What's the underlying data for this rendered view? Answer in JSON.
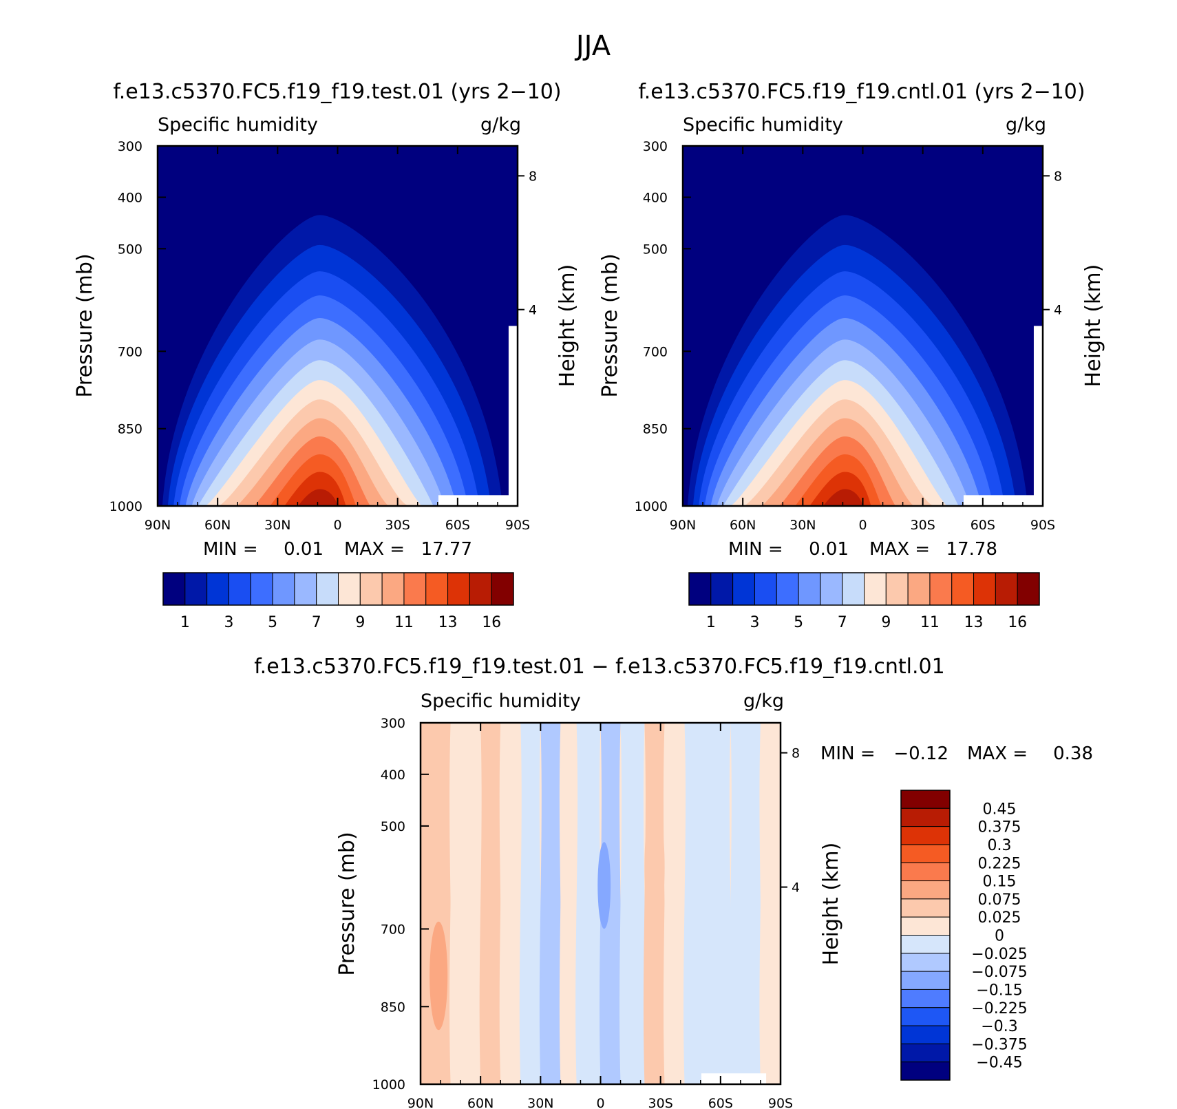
{
  "chart_data": [
    {
      "type": "heatmap",
      "title": "f.e13.c5370.FC5.f19_f19.test.01 (yrs 2−10)",
      "subtitle_left": "Specific humidity",
      "units": "g/kg",
      "xlabel": "",
      "ylabel": "Pressure (mb)",
      "ylabel_right": "Height (km)",
      "xticks": [
        "90N",
        "60N",
        "30N",
        "0",
        "30S",
        "60S",
        "90S"
      ],
      "yticks": [
        "300",
        "400",
        "500",
        "700",
        "850",
        "1000"
      ],
      "yticks_right": [
        "8",
        "4"
      ],
      "ylim": [
        1000,
        300
      ],
      "min_label": "MIN =",
      "max_label": "MAX =",
      "min": "0.01",
      "max": "17.77",
      "colorbar_labels": [
        "1",
        "3",
        "5",
        "7",
        "9",
        "11",
        "13",
        "16"
      ],
      "colors": [
        "#00007f",
        "#0018a8",
        "#0035d6",
        "#1a4ef2",
        "#3d6eff",
        "#6f97ff",
        "#9ab8ff",
        "#c7dcfa",
        "#fde6d6",
        "#fcc9ad",
        "#fba882",
        "#fa7a4d",
        "#f55b23",
        "#dd3306",
        "#b81c04",
        "#820000"
      ],
      "levels_contour": [
        {
          "peak": 0.76,
          "y500": 0.16
        },
        {
          "peak": 0.64,
          "y500": 0.1
        },
        {
          "peak": 0.56,
          "y500": 0.08
        },
        {
          "peak": 0.46,
          "y500": 0.02
        },
        {
          "peak": 0.37,
          "y500": -0.03
        },
        {
          "peak": 0.28,
          "y500": -0.08
        },
        {
          "peak": 0.23,
          "y500": -0.12
        },
        {
          "peak": 0.18,
          "y500": -0.15
        },
        {
          "peak": 0.15,
          "y500": -0.18
        },
        {
          "peak": 0.12,
          "y500": -0.21
        },
        {
          "peak": 0.09,
          "y500": -0.23
        },
        {
          "peak": 0.07,
          "y500": -0.25
        },
        {
          "peak": 0.05,
          "y500": -0.27
        },
        {
          "peak": 0.03,
          "y500": -0.28
        }
      ]
    },
    {
      "type": "heatmap",
      "title": "f.e13.c5370.FC5.f19_f19.cntl.01 (yrs 2−10)",
      "subtitle_left": "Specific humidity",
      "units": "g/kg",
      "xlabel": "",
      "ylabel": "Pressure (mb)",
      "ylabel_right": "Height (km)",
      "xticks": [
        "90N",
        "60N",
        "30N",
        "0",
        "30S",
        "60S",
        "90S"
      ],
      "yticks": [
        "300",
        "400",
        "500",
        "700",
        "850",
        "1000"
      ],
      "yticks_right": [
        "8",
        "4"
      ],
      "ylim": [
        1000,
        300
      ],
      "min_label": "MIN =",
      "max_label": "MAX =",
      "min": "0.01",
      "max": "17.78",
      "colorbar_labels": [
        "1",
        "3",
        "5",
        "7",
        "9",
        "11",
        "13",
        "16"
      ],
      "colors": [
        "#00007f",
        "#0018a8",
        "#0035d6",
        "#1a4ef2",
        "#3d6eff",
        "#6f97ff",
        "#9ab8ff",
        "#c7dcfa",
        "#fde6d6",
        "#fcc9ad",
        "#fba882",
        "#fa7a4d",
        "#f55b23",
        "#dd3306",
        "#b81c04",
        "#820000"
      ]
    },
    {
      "type": "heatmap",
      "title": "f.e13.c5370.FC5.f19_f19.test.01 − f.e13.c5370.FC5.f19_f19.cntl.01",
      "subtitle_left": "Specific humidity",
      "units": "g/kg",
      "xlabel": "",
      "ylabel": "Pressure (mb)",
      "ylabel_right": "Height (km)",
      "xticks": [
        "90N",
        "60N",
        "30N",
        "0",
        "30S",
        "60S",
        "90S"
      ],
      "yticks": [
        "300",
        "400",
        "500",
        "700",
        "850",
        "1000"
      ],
      "yticks_right": [
        "8",
        "4"
      ],
      "ylim": [
        1000,
        300
      ],
      "min_label": "MIN =",
      "max_label": "MAX =",
      "min": "−0.12",
      "max": "0.38",
      "colorbar_labels": [
        "0.45",
        "0.375",
        "0.3",
        "0.225",
        "0.15",
        "0.075",
        "0.025",
        "0",
        "−0.025",
        "−0.075",
        "−0.15",
        "−0.225",
        "−0.3",
        "−0.375",
        "−0.45"
      ],
      "colors": [
        "#820000",
        "#b81c04",
        "#dd3306",
        "#f55b23",
        "#fa7a4d",
        "#fba882",
        "#fcc9ad",
        "#fde6d6",
        "#d6e6fb",
        "#b0c9ff",
        "#85a8ff",
        "#4f7cff",
        "#1e57f5",
        "#0035d6",
        "#0018a8",
        "#00007f"
      ],
      "difference_bands": [
        {
          "lat": 90,
          "value": 0.075
        },
        {
          "lat": 75,
          "value": 0.025
        },
        {
          "lat": 60,
          "value": 0.075
        },
        {
          "lat": 50,
          "value": 0.025
        },
        {
          "lat": 40,
          "value": -0.025
        },
        {
          "lat": 30,
          "value": -0.075
        },
        {
          "lat": 20,
          "value": 0.025
        },
        {
          "lat": 12,
          "value": -0.025
        },
        {
          "lat": 0,
          "value": -0.075
        },
        {
          "lat": -10,
          "value": -0.025
        },
        {
          "lat": -22,
          "value": 0.075
        },
        {
          "lat": -32,
          "value": 0.025
        },
        {
          "lat": -42,
          "value": -0.025
        },
        {
          "lat": -65,
          "value": -0.025
        },
        {
          "lat": -80,
          "value": 0.025
        }
      ]
    }
  ],
  "figure": {
    "title": "JJA"
  }
}
